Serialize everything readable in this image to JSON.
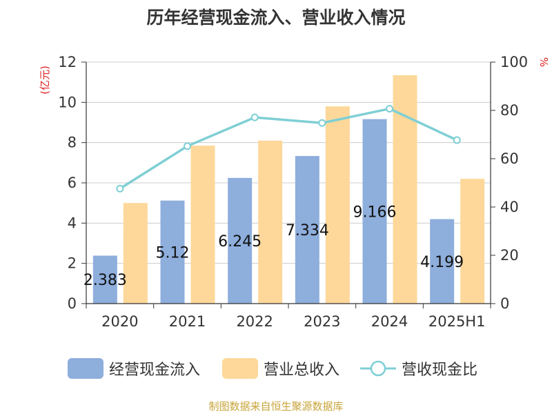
{
  "title": "历年经营现金流入、营业收入情况",
  "source": "制图数据来自恒生聚源数据库",
  "chart_data": {
    "type": "bar",
    "categories": [
      "2020",
      "2021",
      "2022",
      "2023",
      "2024",
      "2025H1"
    ],
    "series": [
      {
        "name": "经营现金流入",
        "type": "bar",
        "axis": "left",
        "color": "#8eaedc",
        "values": [
          2.383,
          5.12,
          6.245,
          7.334,
          9.166,
          4.199
        ],
        "data_labels": [
          "2.383",
          "5.12",
          "6.245",
          "7.334",
          "9.166",
          "4.199"
        ]
      },
      {
        "name": "营业总收入",
        "type": "bar",
        "axis": "left",
        "color": "#fdd89a",
        "values": [
          5.0,
          7.85,
          8.1,
          9.8,
          11.35,
          6.2
        ]
      },
      {
        "name": "营收现金比",
        "type": "line",
        "axis": "right",
        "color": "#7ecfd4",
        "values": [
          47.6,
          65.2,
          77.1,
          74.8,
          80.7,
          67.7
        ]
      }
    ],
    "left_axis": {
      "label": "(亿元)",
      "ylim": [
        0,
        12
      ],
      "ticks": [
        "0",
        "2",
        "4",
        "6",
        "8",
        "10",
        "12"
      ]
    },
    "right_axis": {
      "label": "%",
      "ylim": [
        0,
        100
      ],
      "ticks": [
        "0",
        "20",
        "40",
        "60",
        "80",
        "100"
      ]
    },
    "grid": true,
    "legend_position": "bottom"
  }
}
